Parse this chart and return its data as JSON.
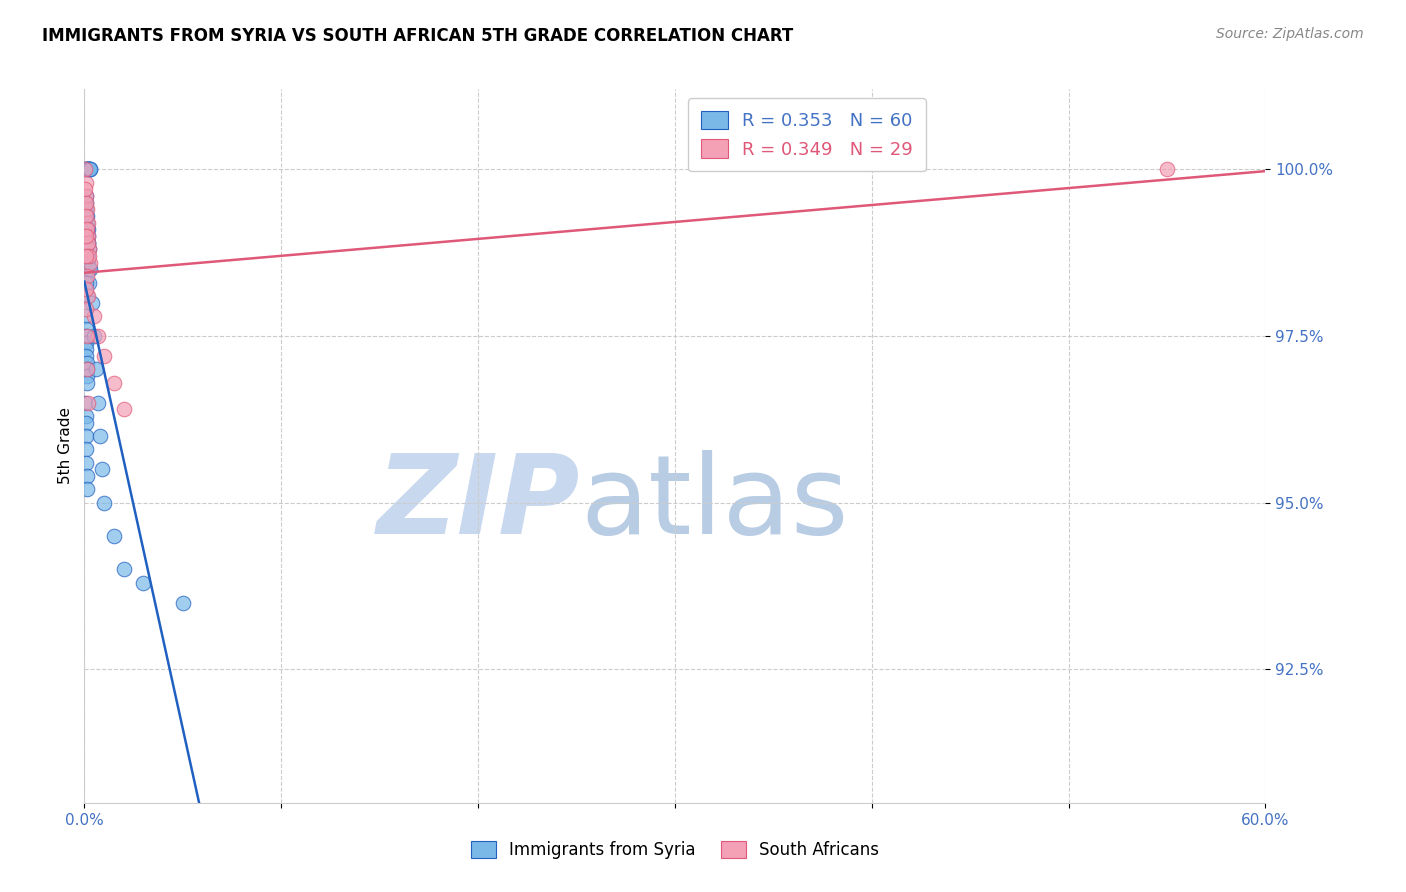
{
  "title": "IMMIGRANTS FROM SYRIA VS SOUTH AFRICAN 5TH GRADE CORRELATION CHART",
  "source": "Source: ZipAtlas.com",
  "ylabel": "5th Grade",
  "ytick_values": [
    92.5,
    95.0,
    97.5,
    100.0
  ],
  "xlim": [
    0.0,
    60.0
  ],
  "ylim": [
    90.5,
    101.2
  ],
  "blue_R": 0.353,
  "blue_N": 60,
  "pink_R": 0.349,
  "pink_N": 29,
  "blue_color": "#7ab8e8",
  "pink_color": "#f4a0b5",
  "blue_line_color": "#2060c0",
  "pink_line_color": "#e05878",
  "tick_color": "#4472c4",
  "watermark_zip": "ZIP",
  "watermark_atlas": "atlas",
  "watermark_color_zip": "#c8d8ee",
  "watermark_color_atlas": "#c8d8ee",
  "background_color": "#ffffff",
  "blue_scatter_x": [
    0.05,
    0.08,
    0.12,
    0.15,
    0.18,
    0.2,
    0.22,
    0.25,
    0.28,
    0.3,
    0.05,
    0.08,
    0.1,
    0.13,
    0.16,
    0.18,
    0.2,
    0.22,
    0.06,
    0.09,
    0.11,
    0.14,
    0.17,
    0.19,
    0.21,
    0.23,
    0.26,
    0.07,
    0.1,
    0.12,
    0.05,
    0.06,
    0.07,
    0.08,
    0.09,
    0.1,
    0.11,
    0.12,
    0.13,
    0.14,
    0.05,
    0.06,
    0.07,
    0.08,
    0.09,
    0.1,
    0.11,
    0.12,
    0.3,
    0.4,
    0.5,
    0.6,
    0.7,
    0.8,
    0.9,
    1.0,
    1.5,
    2.0,
    3.0,
    5.0
  ],
  "blue_scatter_y": [
    100.0,
    100.0,
    100.0,
    100.0,
    100.0,
    100.0,
    100.0,
    100.0,
    100.0,
    100.0,
    99.5,
    99.4,
    99.3,
    99.2,
    99.1,
    99.0,
    98.9,
    98.8,
    99.6,
    99.5,
    99.3,
    99.1,
    98.9,
    98.7,
    98.6,
    98.5,
    98.3,
    98.5,
    98.3,
    98.1,
    97.8,
    97.6,
    97.5,
    97.4,
    97.3,
    97.2,
    97.1,
    97.0,
    96.9,
    96.8,
    96.5,
    96.3,
    96.2,
    96.0,
    95.8,
    95.6,
    95.4,
    95.2,
    98.5,
    98.0,
    97.5,
    97.0,
    96.5,
    96.0,
    95.5,
    95.0,
    94.5,
    94.0,
    93.8,
    93.5
  ],
  "pink_scatter_x": [
    0.05,
    0.08,
    0.1,
    0.13,
    0.16,
    0.2,
    0.25,
    0.3,
    0.05,
    0.08,
    0.1,
    0.14,
    0.18,
    0.22,
    0.06,
    0.09,
    0.12,
    0.17,
    0.5,
    0.7,
    1.0,
    1.5,
    2.0,
    0.06,
    0.09,
    0.12,
    0.15,
    0.2,
    55.0
  ],
  "pink_scatter_y": [
    100.0,
    99.8,
    99.6,
    99.4,
    99.2,
    99.0,
    98.8,
    98.6,
    99.7,
    99.5,
    99.3,
    99.1,
    98.9,
    98.7,
    99.0,
    98.7,
    98.4,
    98.1,
    97.8,
    97.5,
    97.2,
    96.8,
    96.4,
    98.2,
    97.9,
    97.5,
    97.0,
    96.5,
    100.0
  ]
}
